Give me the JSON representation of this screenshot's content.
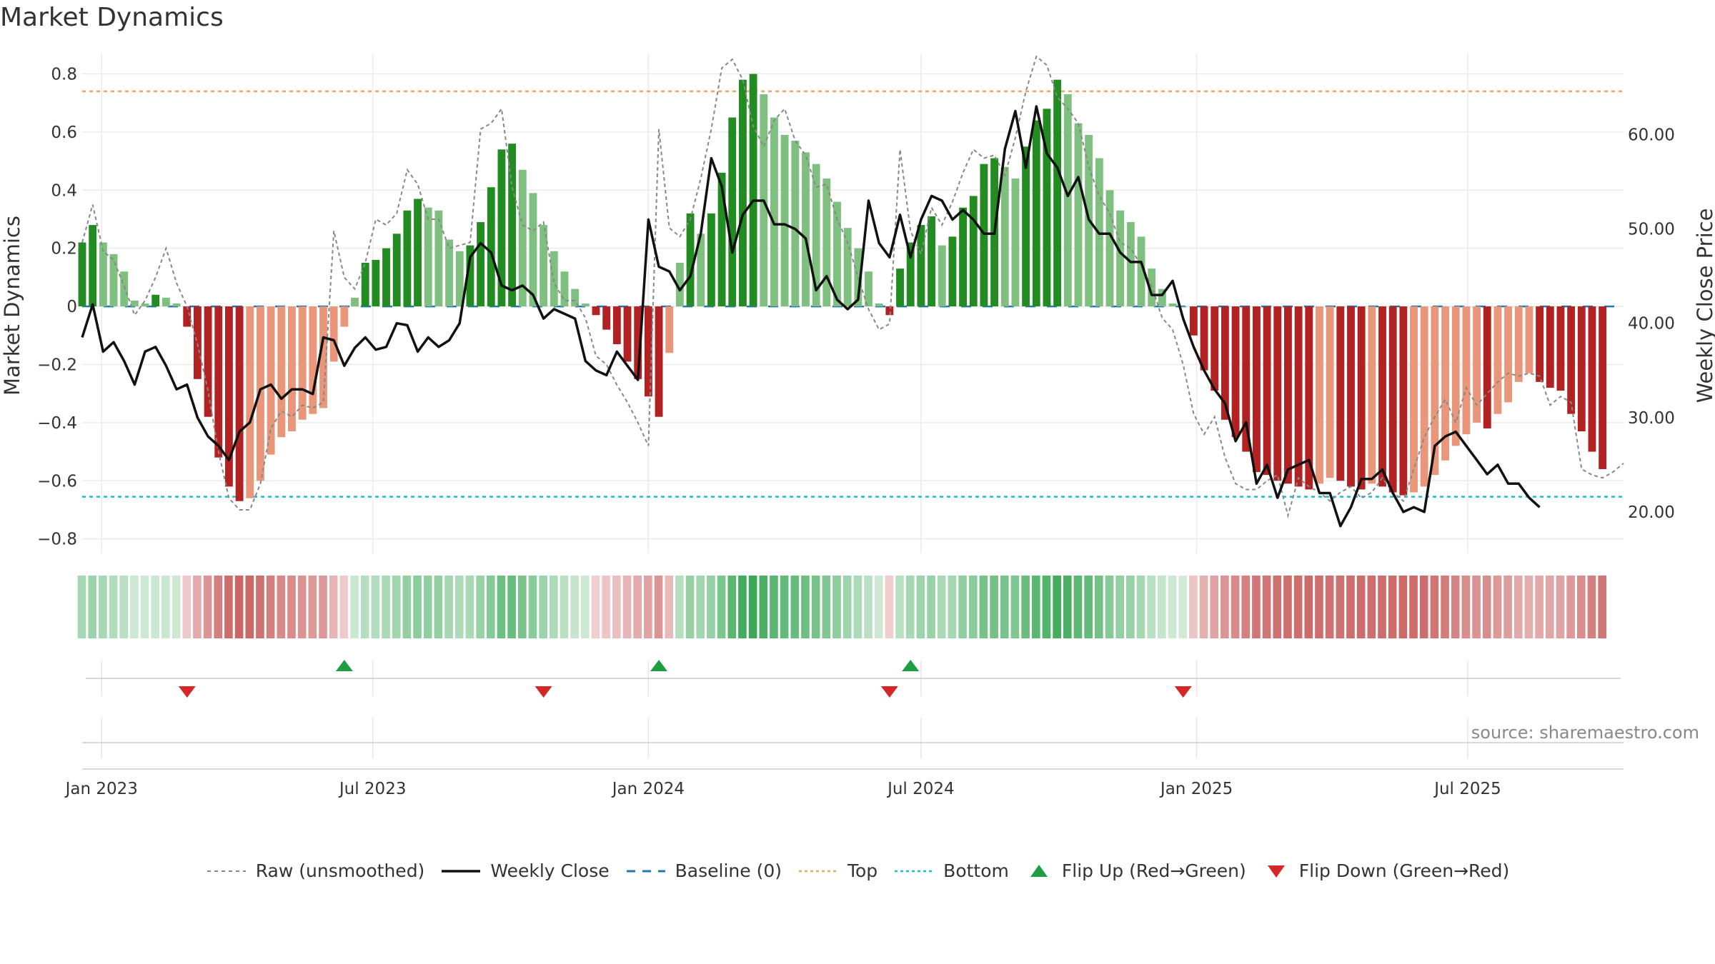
{
  "title": "Market Dynamics",
  "source": "source: sharemaestro.com",
  "chart_data": {
    "type": "bar",
    "left_axis": {
      "label": "Market Dynamics",
      "range": [
        -0.85,
        0.87
      ],
      "ticks": [
        0.8,
        0.6,
        0.4,
        0.2,
        0,
        -0.2,
        -0.4,
        -0.6,
        -0.8
      ],
      "tick_labels": [
        "0.8",
        "0.6",
        "0.4",
        "0.2",
        "0",
        "−0.2",
        "−0.4",
        "−0.6",
        "−0.8"
      ]
    },
    "right_axis": {
      "label": "Weekly Close Price",
      "range": [
        15.6,
        68.6
      ],
      "ticks": [
        60,
        50,
        40,
        30,
        20
      ],
      "tick_labels": [
        "60.00",
        "50.00",
        "40.00",
        "30.00",
        "20.00"
      ]
    },
    "x_axis": {
      "start": "2022-12-19",
      "end": "2025-10-13",
      "ticks": [
        "2023-01-01",
        "2023-07-01",
        "2024-01-01",
        "2024-07-01",
        "2025-01-01",
        "2025-07-01"
      ],
      "tick_labels": [
        "Jan 2023",
        "Jul 2023",
        "Jan 2024",
        "Jul 2024",
        "Jan 2025",
        "Jul 2025"
      ]
    },
    "reference_lines": {
      "baseline": 0,
      "top": 0.74,
      "bottom": -0.655
    },
    "series": [
      {
        "name": "Market Dynamics (smoothed)",
        "start": "2022-12-19",
        "interval_days": 7,
        "values": [
          0.22,
          0.28,
          0.22,
          0.18,
          0.12,
          0.02,
          0.01,
          0.04,
          0.03,
          0.01,
          -0.07,
          -0.25,
          -0.38,
          -0.52,
          -0.62,
          -0.67,
          -0.66,
          -0.6,
          -0.51,
          -0.45,
          -0.43,
          -0.39,
          -0.37,
          -0.35,
          -0.19,
          -0.07,
          0.03,
          0.15,
          0.16,
          0.2,
          0.25,
          0.33,
          0.37,
          0.34,
          0.33,
          0.23,
          0.19,
          0.21,
          0.29,
          0.41,
          0.54,
          0.56,
          0.47,
          0.39,
          0.28,
          0.19,
          0.12,
          0.06,
          0.01,
          -0.03,
          -0.08,
          -0.13,
          -0.19,
          -0.25,
          -0.31,
          -0.38,
          -0.16,
          0.15,
          0.32,
          0.25,
          0.32,
          0.46,
          0.65,
          0.78,
          0.8,
          0.73,
          0.65,
          0.59,
          0.57,
          0.53,
          0.49,
          0.44,
          0.36,
          0.27,
          0.2,
          0.12,
          0.01,
          -0.03,
          0.13,
          0.22,
          0.28,
          0.31,
          0.21,
          0.24,
          0.34,
          0.38,
          0.49,
          0.51,
          0.48,
          0.44,
          0.55,
          0.64,
          0.68,
          0.78,
          0.73,
          0.63,
          0.59,
          0.51,
          0.4,
          0.33,
          0.29,
          0.24,
          0.13,
          0.06,
          0.01,
          0.0,
          -0.1,
          -0.22,
          -0.29,
          -0.39,
          -0.45,
          -0.5,
          -0.57,
          -0.58,
          -0.6,
          -0.61,
          -0.62,
          -0.63,
          -0.61,
          -0.59,
          -0.6,
          -0.62,
          -0.63,
          -0.61,
          -0.62,
          -0.64,
          -0.65,
          -0.64,
          -0.62,
          -0.58,
          -0.53,
          -0.48,
          -0.44,
          -0.4,
          -0.42,
          -0.37,
          -0.33,
          -0.26,
          -0.23,
          -0.26,
          -0.28,
          -0.29,
          -0.37,
          -0.43,
          -0.5,
          -0.56
        ]
      },
      {
        "name": "Raw (unsmoothed)",
        "start": "2022-12-19",
        "interval_days": 7,
        "values": [
          0.22,
          0.35,
          0.19,
          0.16,
          0.07,
          -0.03,
          0.02,
          0.1,
          0.2,
          0.08,
          0.0,
          -0.13,
          -0.29,
          -0.5,
          -0.66,
          -0.7,
          -0.7,
          -0.61,
          -0.42,
          -0.36,
          -0.38,
          -0.34,
          -0.35,
          -0.33,
          0.26,
          0.1,
          0.06,
          0.15,
          0.3,
          0.28,
          0.32,
          0.47,
          0.42,
          0.3,
          0.3,
          0.2,
          0.21,
          0.22,
          0.61,
          0.63,
          0.68,
          0.41,
          0.28,
          0.26,
          0.29,
          0.08,
          0.02,
          0.02,
          -0.04,
          -0.17,
          -0.2,
          -0.27,
          -0.33,
          -0.4,
          -0.48,
          0.61,
          0.27,
          0.24,
          0.3,
          0.44,
          0.61,
          0.82,
          0.85,
          0.78,
          0.62,
          0.55,
          0.64,
          0.68,
          0.57,
          0.52,
          0.41,
          0.42,
          0.3,
          0.22,
          0.1,
          -0.01,
          -0.08,
          -0.06,
          0.54,
          0.26,
          0.18,
          0.34,
          0.28,
          0.36,
          0.46,
          0.54,
          0.51,
          0.52,
          0.45,
          0.58,
          0.74,
          0.86,
          0.83,
          0.72,
          0.68,
          0.63,
          0.48,
          0.38,
          0.32,
          0.22,
          0.2,
          0.14,
          0.07,
          -0.04,
          -0.08,
          -0.2,
          -0.37,
          -0.44,
          -0.38,
          -0.52,
          -0.61,
          -0.63,
          -0.63,
          -0.6,
          -0.58,
          -0.72,
          -0.59,
          -0.62,
          -0.64,
          -0.67,
          -0.64,
          -0.62,
          -0.66,
          -0.64,
          -0.59,
          -0.64,
          -0.67,
          -0.56,
          -0.45,
          -0.38,
          -0.32,
          -0.4,
          -0.28,
          -0.34,
          -0.3,
          -0.26,
          -0.23,
          -0.24,
          -0.23,
          -0.24,
          -0.34,
          -0.31,
          -0.33,
          -0.56,
          -0.58,
          -0.59,
          -0.57,
          -0.54
        ]
      },
      {
        "name": "Weekly Close",
        "axis": "right",
        "start": "2022-12-19",
        "interval_days": 7,
        "values": [
          38.5,
          42.0,
          37.0,
          38.0,
          36.0,
          33.5,
          37.0,
          37.5,
          35.5,
          33.0,
          33.5,
          30.0,
          28.0,
          27.0,
          25.5,
          28.5,
          29.5,
          33.0,
          33.5,
          32.0,
          33.0,
          33.0,
          32.5,
          38.5,
          38.2,
          35.5,
          37.4,
          38.5,
          37.2,
          37.5,
          40.0,
          39.8,
          37.0,
          38.5,
          37.5,
          38.2,
          40.0,
          47.0,
          48.5,
          47.5,
          44.0,
          43.5,
          44.0,
          43.0,
          40.5,
          41.5,
          41.0,
          40.5,
          36.0,
          35.0,
          34.5,
          37.0,
          35.5,
          34.0,
          51.0,
          46.0,
          45.5,
          43.5,
          45.0,
          49.5,
          57.5,
          54.5,
          47.5,
          51.5,
          53.0,
          53.0,
          50.5,
          50.5,
          50.0,
          49.0,
          43.5,
          45.0,
          42.5,
          41.5,
          42.5,
          53.0,
          48.5,
          47.0,
          51.5,
          47.0,
          51.0,
          53.5,
          53.0,
          51.0,
          52.0,
          51.0,
          49.5,
          49.5,
          58.5,
          62.5,
          56.5,
          63.0,
          58.0,
          56.5,
          53.5,
          55.5,
          51.0,
          49.5,
          49.5,
          47.5,
          46.5,
          46.5,
          43.0,
          43.0,
          44.5,
          40.5,
          37.5,
          35.0,
          33.0,
          31.5,
          27.5,
          29.5,
          23.0,
          25.0,
          21.5,
          24.5,
          25.0,
          25.5,
          22.0,
          22.0,
          18.5,
          20.5,
          23.5,
          23.5,
          24.5,
          22.0,
          20.0,
          20.5,
          20.0,
          27.0,
          28.0,
          28.5,
          27.0,
          25.5,
          24.0,
          25.0,
          23.0,
          23.0,
          21.5,
          20.5
        ]
      }
    ],
    "regime_strip": {
      "start": "2022-12-19",
      "interval_days": 7,
      "note": "per-week color band: green = positive regime, red = negative regime, intensity follows magnitude"
    },
    "flip_up_dates": [
      "2023-06-12",
      "2024-01-08",
      "2024-06-24"
    ],
    "flip_down_dates": [
      "2023-02-27",
      "2023-10-23",
      "2024-06-10",
      "2024-12-23"
    ],
    "legend": {
      "position": "bottom-center",
      "items": [
        {
          "label": "Raw (unsmoothed)",
          "style": "gray-dotted"
        },
        {
          "label": "Weekly Close",
          "style": "black-solid"
        },
        {
          "label": "Baseline (0)",
          "style": "blue-dashed"
        },
        {
          "label": "Top",
          "style": "orange-dotted"
        },
        {
          "label": "Bottom",
          "style": "cyan-dotted"
        },
        {
          "label": "Flip Up (Red→Green)",
          "style": "green-triangle-up"
        },
        {
          "label": "Flip Down (Green→Red)",
          "style": "red-triangle-down"
        }
      ]
    },
    "grid": true,
    "colors": {
      "pos_strong": "#228b22",
      "pos_weak": "#7fbf7f",
      "neg_strong": "#b22222",
      "neg_weak": "#e9967a",
      "raw": "#888888",
      "close": "#111111",
      "baseline": "#1f77b4",
      "top": "#f4a460",
      "bottom": "#17becf",
      "flip_up": "#1e9e40",
      "flip_down": "#d62728"
    }
  }
}
